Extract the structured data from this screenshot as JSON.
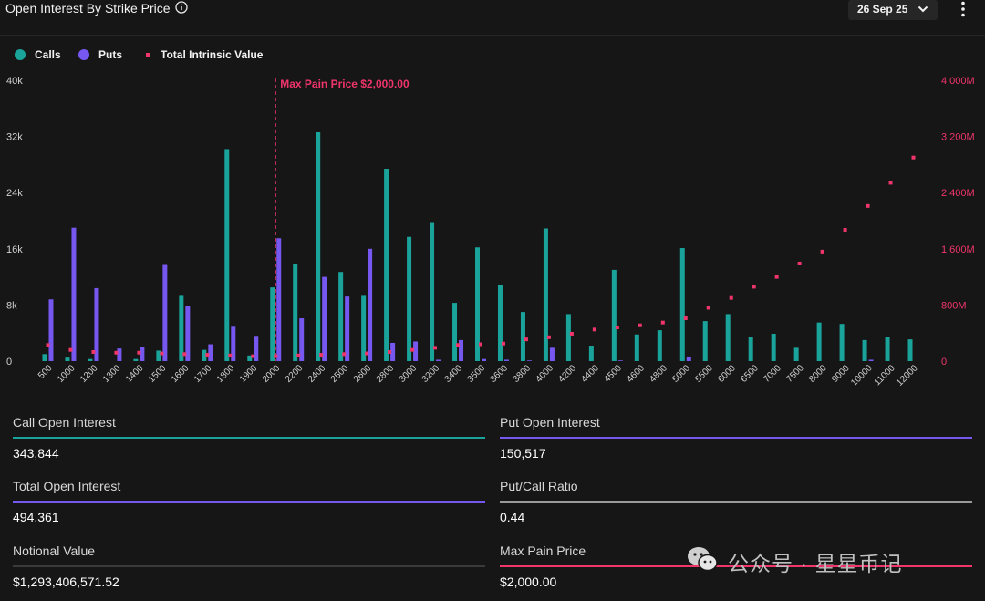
{
  "header": {
    "title": "Open Interest By Strike Price",
    "expiry": "26 Sep 25",
    "info_icon": "info-circle-icon",
    "expiry_icon": "chevron-down-icon",
    "more_icon": "more-vertical-icon"
  },
  "legend": {
    "calls": "Calls",
    "puts": "Puts",
    "intrinsic": "Total Intrinsic Value"
  },
  "colors": {
    "calls": "#1aa39a",
    "puts": "#7657f0",
    "intrinsic": "#f0356b",
    "background": "#161616"
  },
  "chart_data": {
    "type": "bar",
    "categories": [
      "500",
      "1000",
      "1200",
      "1300",
      "1400",
      "1500",
      "1600",
      "1700",
      "1800",
      "1900",
      "2000",
      "2200",
      "2400",
      "2500",
      "2600",
      "2800",
      "3000",
      "3200",
      "3400",
      "3500",
      "3600",
      "3800",
      "4000",
      "4200",
      "4400",
      "4500",
      "4600",
      "4800",
      "5000",
      "5500",
      "6000",
      "6500",
      "7000",
      "7500",
      "8000",
      "9000",
      "10000",
      "11000",
      "12000"
    ],
    "y_ticks": [
      "0",
      "8k",
      "16k",
      "24k",
      "32k",
      "40k"
    ],
    "y2_ticks": [
      "0",
      "800M",
      "1 600M",
      "2 400M",
      "3 200M",
      "4 000M"
    ],
    "ylim": [
      0,
      40000
    ],
    "y2lim": [
      0,
      4000
    ],
    "y2_unit": "M",
    "series": [
      {
        "name": "Calls",
        "axis": "left",
        "values": [
          1000,
          500,
          300,
          0,
          300,
          1500,
          9300,
          1600,
          30200,
          800,
          10500,
          13900,
          32600,
          12700,
          9300,
          27400,
          17700,
          19800,
          8300,
          16200,
          10800,
          7000,
          18900,
          6700,
          2200,
          13000,
          3800,
          4400,
          16100,
          5700,
          6700,
          3500,
          3900,
          1900,
          5500,
          5300,
          3000,
          3400,
          3100
        ]
      },
      {
        "name": "Puts",
        "axis": "left",
        "values": [
          8800,
          19000,
          10400,
          1800,
          2000,
          13700,
          7800,
          2400,
          4900,
          3600,
          17500,
          6100,
          12000,
          9200,
          16000,
          2600,
          2800,
          200,
          3000,
          300,
          200,
          100,
          1900,
          0,
          0,
          100,
          0,
          0,
          600,
          0,
          0,
          0,
          0,
          0,
          0,
          0,
          200,
          0,
          0
        ]
      },
      {
        "name": "Total Intrinsic Value",
        "axis": "right",
        "values": [
          230,
          160,
          130,
          120,
          120,
          110,
          100,
          90,
          80,
          70,
          70,
          80,
          90,
          100,
          110,
          130,
          160,
          190,
          230,
          240,
          250,
          310,
          340,
          390,
          450,
          480,
          510,
          550,
          610,
          760,
          900,
          1060,
          1200,
          1390,
          1560,
          1870,
          2210,
          2540,
          2900
        ]
      }
    ],
    "annotations": [
      {
        "type": "vline",
        "x": "2000",
        "label": "Max Pain Price $2,000.00"
      }
    ],
    "legend_position": "top-left",
    "grid": false
  },
  "stats": [
    {
      "label": "Call Open Interest",
      "value": "343,844",
      "color": "#1aa39a"
    },
    {
      "label": "Put Open Interest",
      "value": "150,517",
      "color": "#7657f0"
    },
    {
      "label": "Total Open Interest",
      "value": "494,361",
      "color": "#7657f0"
    },
    {
      "label": "Put/Call Ratio",
      "value": "0.44",
      "color": "#9a9a9a"
    },
    {
      "label": "Notional Value",
      "value": "$1,293,406,571.52",
      "color": "#3a3a3a"
    },
    {
      "label": "Max Pain Price",
      "value": "$2,000.00",
      "color": "#f0356b"
    }
  ],
  "watermark": {
    "text": "公众号 · 星星币记",
    "icon": "wechat-icon"
  }
}
